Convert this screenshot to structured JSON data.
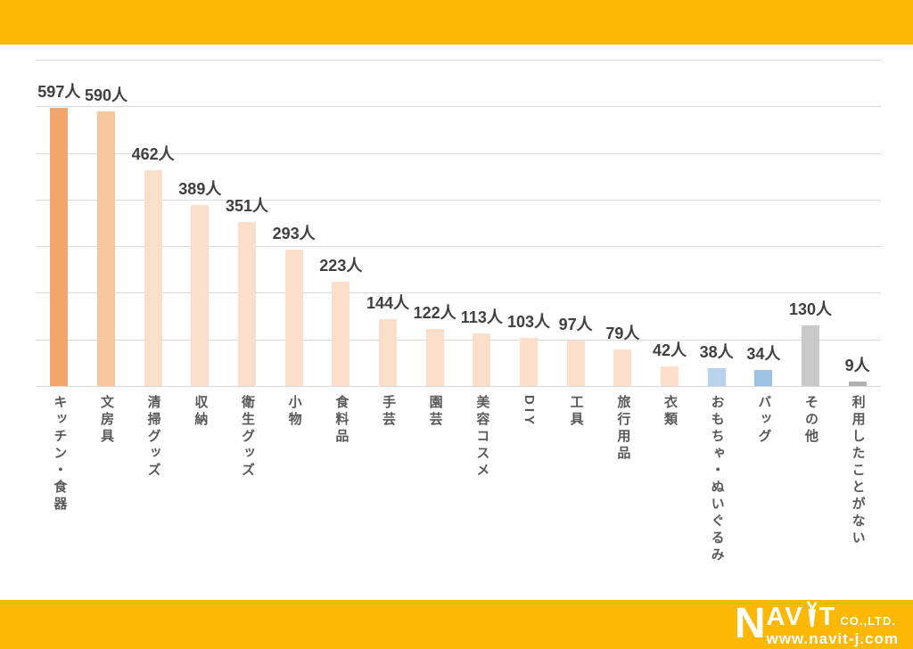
{
  "page": {
    "background": "#FFFFFF"
  },
  "header": {
    "color": "#FCB805"
  },
  "footer": {
    "color": "#FCB805",
    "logo": {
      "brand_n": "N",
      "brand_av": "AV",
      "brand_t": "T",
      "company_suffix": "CO.,LTD.",
      "website": "www.navit-j.com",
      "text_color": "#FFFFFF"
    }
  },
  "chart_data": {
    "type": "bar",
    "title": "",
    "xlabel": "",
    "ylabel": "",
    "unit_suffix": "人",
    "categories": [
      "キッチン・食器",
      "文房具",
      "清掃グッズ",
      "収納",
      "衛生グッズ",
      "小物",
      "食料品",
      "手芸",
      "園芸",
      "美容コスメ",
      "DIY",
      "工具",
      "旅行用品",
      "衣類",
      "おもちゃ・ぬいぐるみ",
      "バッグ",
      "その他",
      "利用したことがない"
    ],
    "values": [
      597,
      590,
      462,
      389,
      351,
      293,
      223,
      144,
      122,
      113,
      103,
      97,
      79,
      42,
      38,
      34,
      130,
      9
    ],
    "value_labels": [
      "597人",
      "590人",
      "462人",
      "389人",
      "351人",
      "293人",
      "223人",
      "144人",
      "122人",
      "113人",
      "103人",
      "97人",
      "79人",
      "42人",
      "38人",
      "34人",
      "130人",
      "9人"
    ],
    "bar_colors": [
      "#F4A46D",
      "#F8C69D",
      "#FBDFCA",
      "#FBDFCA",
      "#FBDFCA",
      "#FBDFCA",
      "#FBDFCA",
      "#FBDFCA",
      "#FBDFCA",
      "#FBDFCA",
      "#FBDFCA",
      "#FBDFCA",
      "#FBDFCA",
      "#FBDFCA",
      "#B9D2EB",
      "#9EC3E4",
      "#C9C9C9",
      "#B0B0B0"
    ],
    "ylim": [
      0,
      700
    ],
    "grid": true,
    "gridline_step": 100,
    "legend": "none",
    "gridline_color": "#D9D9D9",
    "value_label_color": "#404040",
    "category_label_color": "#595959"
  }
}
